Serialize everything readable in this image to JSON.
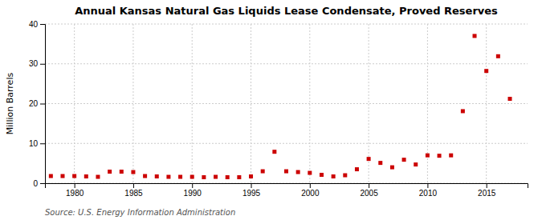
{
  "chart_data": {
    "type": "scatter",
    "title": "Annual Kansas Natural Gas Liquids Lease Condensate, Proved Reserves",
    "ylabel": "Million Barrels",
    "annotations": [
      "Source: U.S. Energy Information Administration"
    ],
    "x": [
      1978,
      1979,
      1980,
      1981,
      1982,
      1983,
      1984,
      1985,
      1986,
      1987,
      1988,
      1989,
      1990,
      1991,
      1992,
      1993,
      1994,
      1995,
      1996,
      1997,
      1998,
      1999,
      2000,
      2001,
      2002,
      2003,
      2004,
      2005,
      2006,
      2007,
      2008,
      2009,
      2010,
      2011,
      2012,
      2013,
      2014,
      2015,
      2016,
      2017
    ],
    "values": [
      1.8,
      1.8,
      1.8,
      1.7,
      1.6,
      2.9,
      2.9,
      2.8,
      1.8,
      1.7,
      1.6,
      1.6,
      1.6,
      1.5,
      1.6,
      1.5,
      1.5,
      1.7,
      3.0,
      7.9,
      3.0,
      2.8,
      2.6,
      2.1,
      1.7,
      2.0,
      3.5,
      6.1,
      5.1,
      4.0,
      5.9,
      4.7,
      7.0,
      6.9,
      7.0,
      18.1,
      37.0,
      28.2,
      31.9,
      21.2
    ],
    "color": "#cc0000",
    "marker": "square",
    "xlim": [
      1977.5,
      2018.5
    ],
    "ylim": [
      0,
      40
    ],
    "xticks": [
      1980,
      1985,
      1990,
      1995,
      2000,
      2005,
      2010,
      2015
    ],
    "yticks": [
      0,
      10,
      20,
      30,
      40
    ],
    "grid": true
  }
}
